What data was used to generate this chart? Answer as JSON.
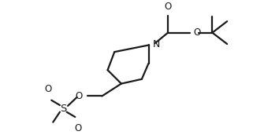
{
  "bg_color": "#ffffff",
  "line_color": "#1a1a1a",
  "line_width": 1.6,
  "font_size": 8.5,
  "figsize": [
    3.54,
    1.72
  ],
  "dpi": 100,
  "xlim": [
    0,
    10
  ],
  "ylim": [
    0,
    5.5
  ]
}
